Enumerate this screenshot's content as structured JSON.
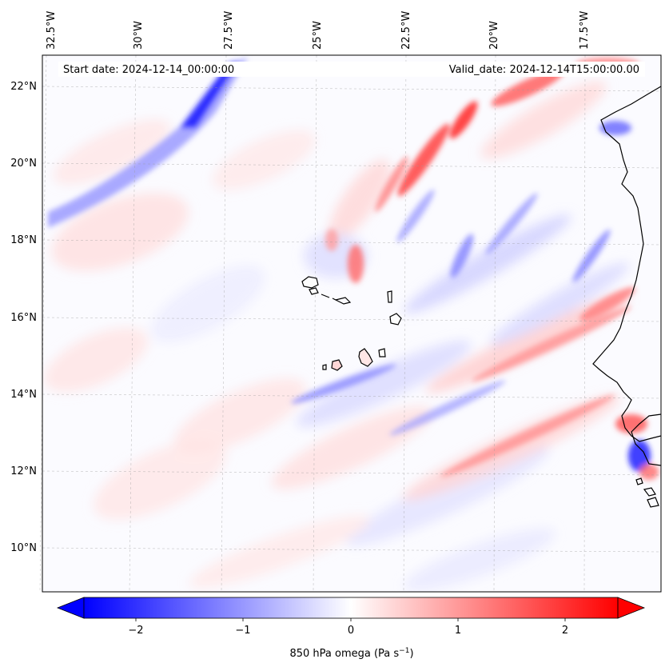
{
  "map": {
    "top_longitude_labels": [
      "32.5°W",
      "30°W",
      "27.5°W",
      "25°W",
      "22.5°W",
      "20°W",
      "17.5°W"
    ],
    "left_latitude_labels": [
      "22°N",
      "20°N",
      "18°N",
      "16°N",
      "14°N",
      "12°N",
      "10°N"
    ],
    "start_date_text": "Start date: 2024-12-14_00:00:00",
    "valid_date_text": "Valid_date: 2024-12-14T15:00:00.00",
    "field_colors": {
      "negative": "#0000ff",
      "neutral": "#ffffff",
      "positive": "#ff0000"
    },
    "coastline_color": "#000000"
  },
  "colorbar": {
    "tick_labels": [
      "−2",
      "−1",
      "0",
      "1",
      "2"
    ],
    "label_main": "850 hPa omega (Pa s",
    "label_sup": "−1",
    "label_end": ")",
    "min_color": "#0000ff",
    "mid_color": "#ffffff",
    "max_color": "#ff0000"
  }
}
